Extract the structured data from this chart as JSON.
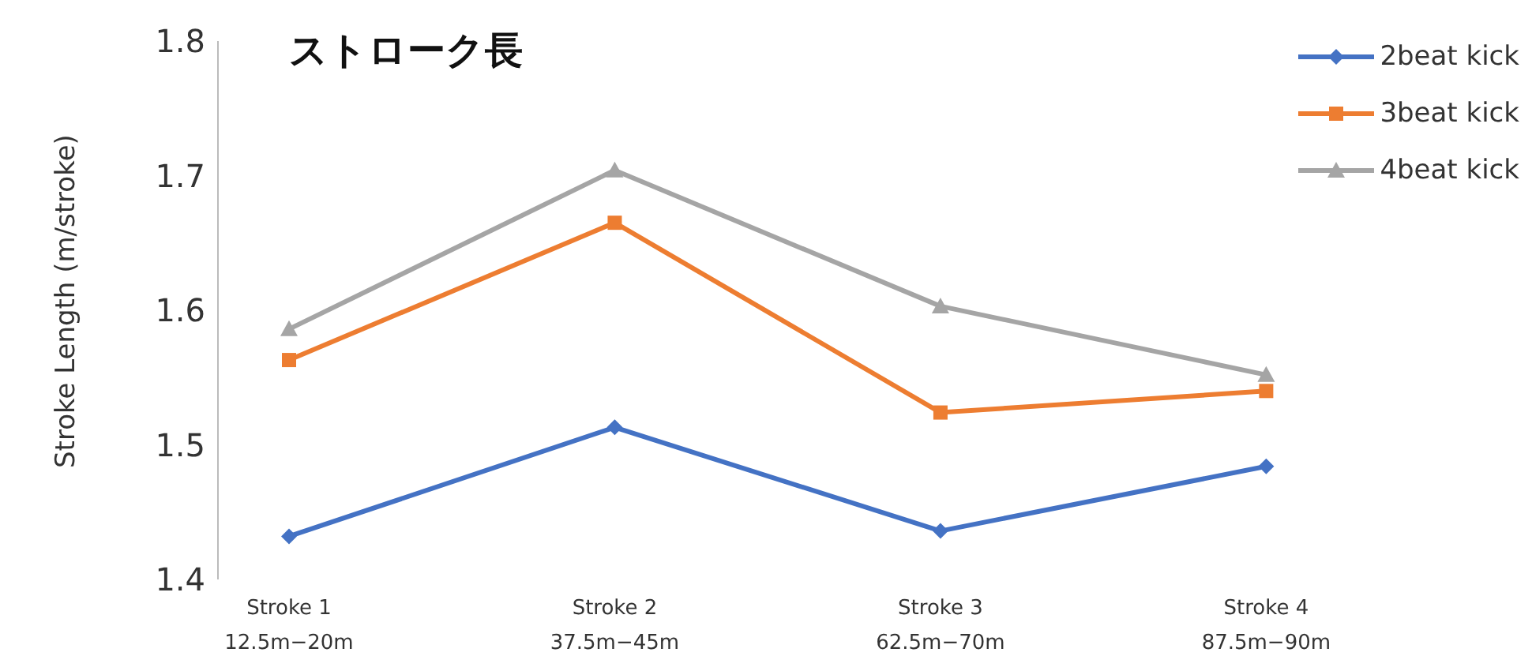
{
  "chart_data": {
    "type": "line",
    "title": "ストローク長",
    "ylabel": "Stroke Length (m/stroke)",
    "categories": [
      "Stroke 1\n12.5m−20m",
      "Stroke 2\n37.5m−45m",
      "Stroke 3\n62.5m−70m",
      "Stroke 4\n87.5m−90m"
    ],
    "series": [
      {
        "name": "2beat kick",
        "color": "#4472c4",
        "marker": "diamond",
        "values": [
          1.432,
          1.513,
          1.436,
          1.484
        ]
      },
      {
        "name": "3beat kick",
        "color": "#ed7d31",
        "marker": "square",
        "values": [
          1.563,
          1.665,
          1.524,
          1.54
        ]
      },
      {
        "name": "4beat kick",
        "color": "#a5a5a5",
        "marker": "triangle",
        "values": [
          1.586,
          1.704,
          1.603,
          1.552
        ]
      }
    ],
    "ylim": [
      1.4,
      1.8
    ],
    "yticks": [
      1.4,
      1.5,
      1.6,
      1.7,
      1.8
    ],
    "grid": false,
    "legend": "top right"
  }
}
